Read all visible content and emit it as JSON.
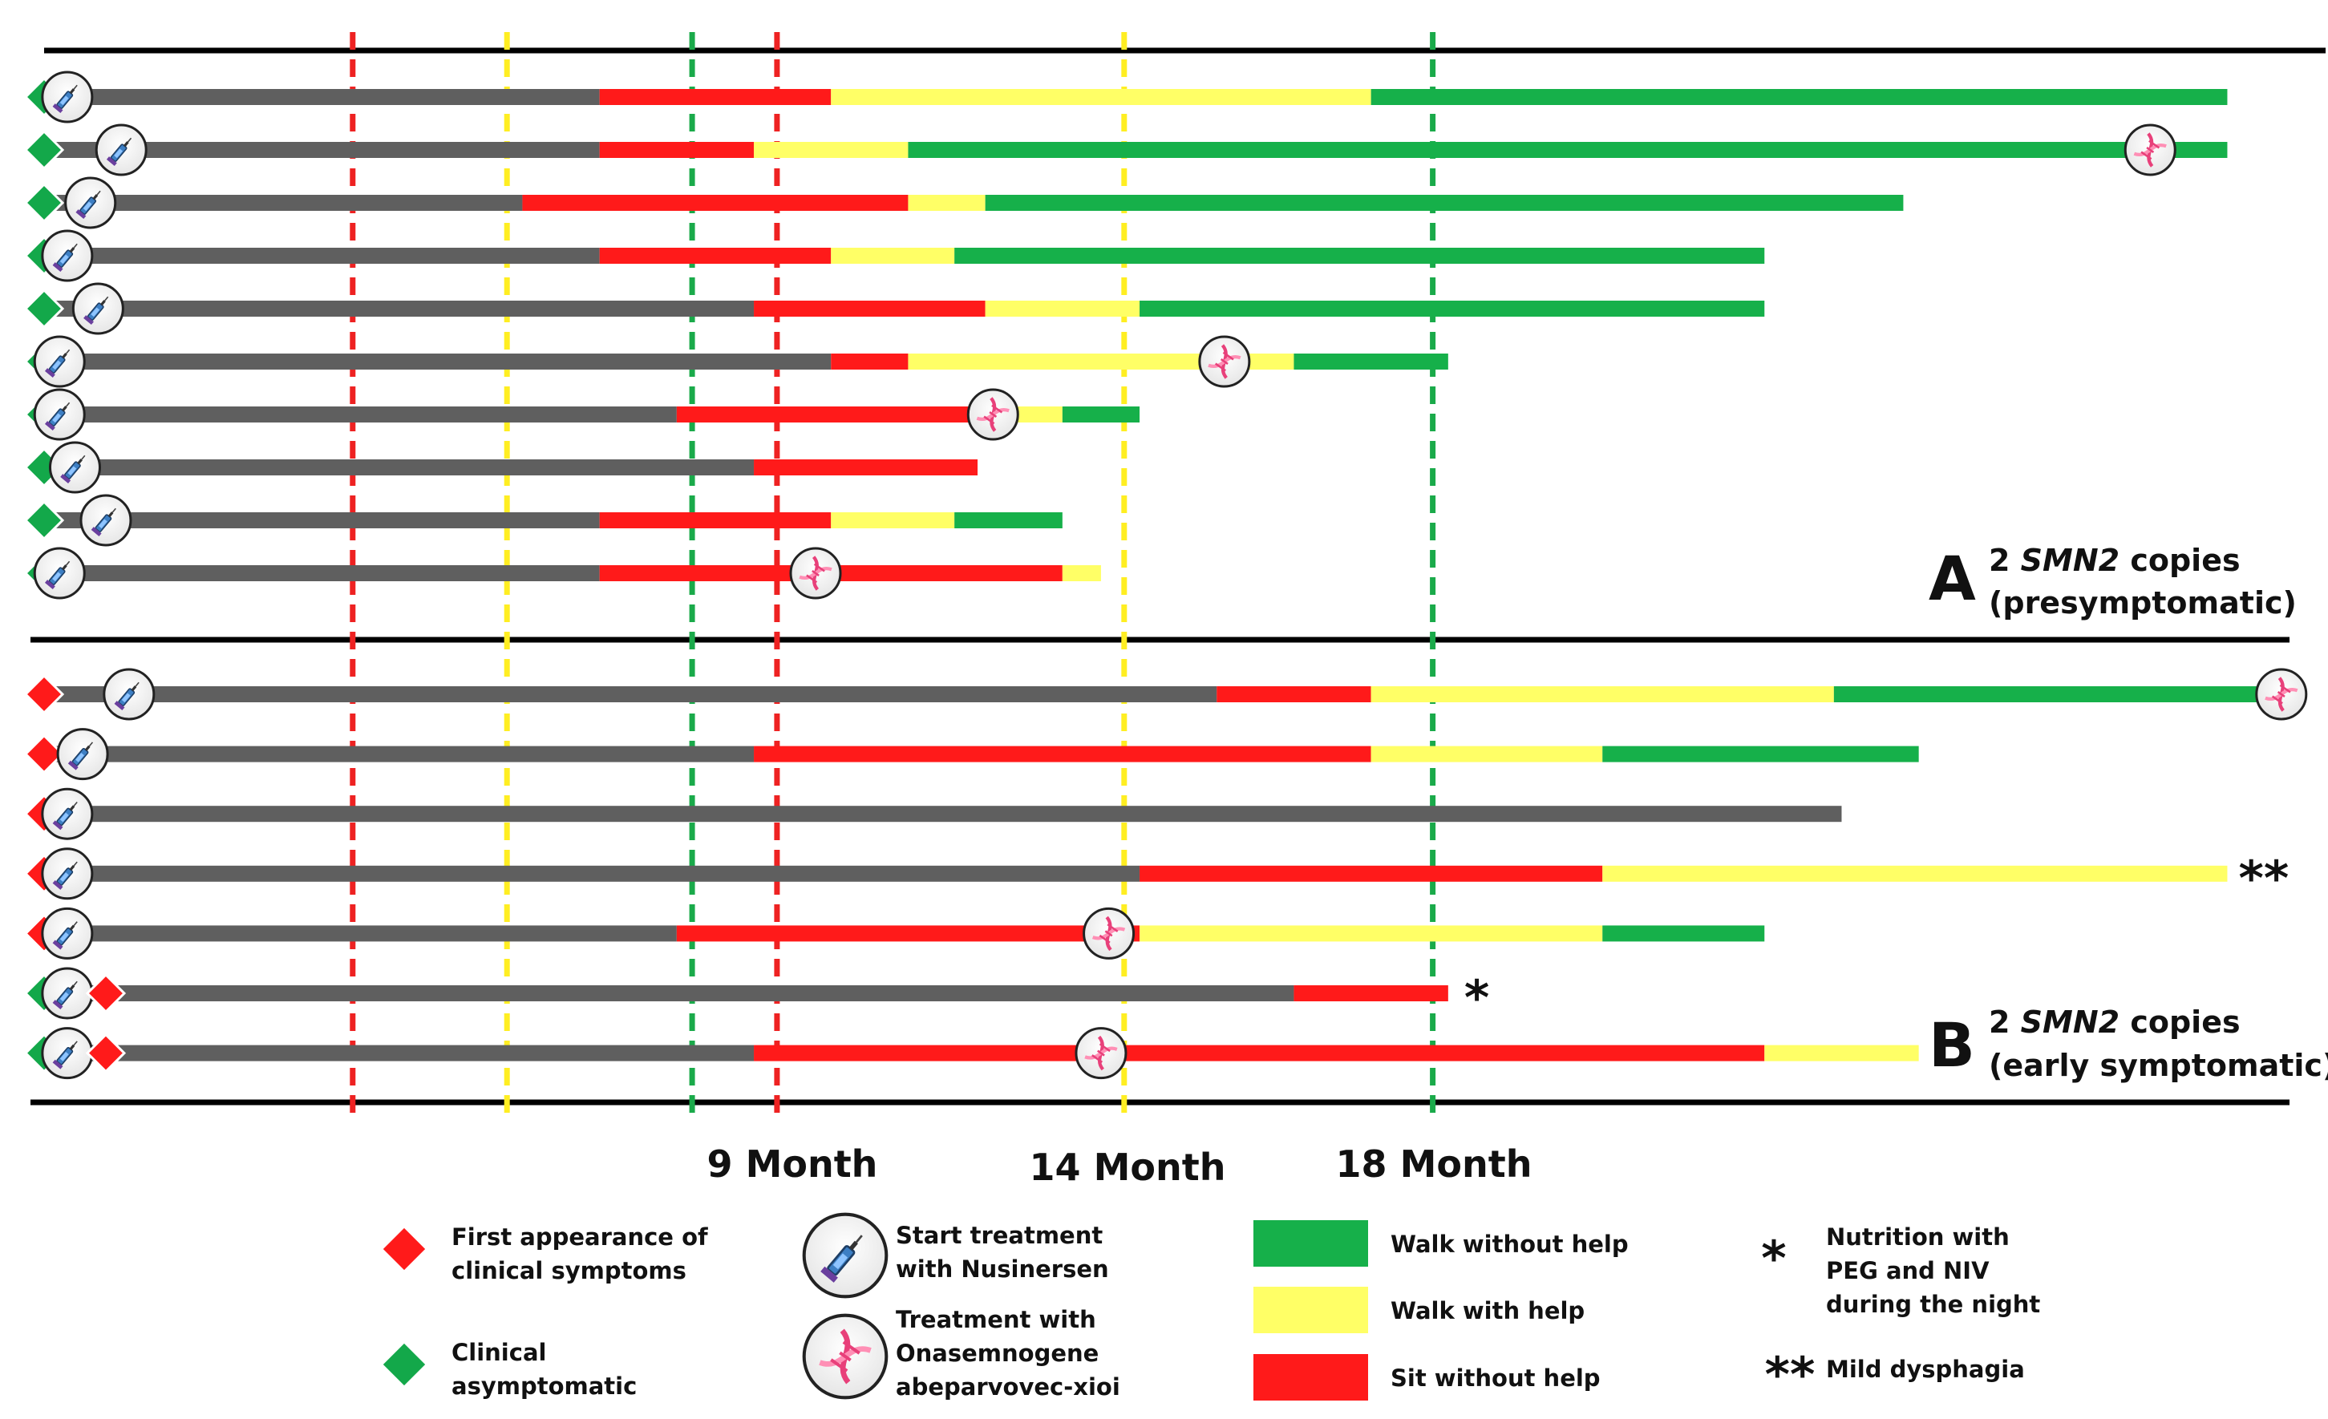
{
  "chart_data": {
    "type": "timeline",
    "x_unit": "month",
    "x_range": [
      0,
      27
    ],
    "month_labels": [
      {
        "month": 9,
        "text": "9 Month"
      },
      {
        "month": 14,
        "text": "14 Month"
      },
      {
        "month": 18,
        "text": "18 Month"
      }
    ],
    "reference_lines": [
      {
        "month": 4,
        "color": "red"
      },
      {
        "month": 6,
        "color": "yellow"
      },
      {
        "month": 8.4,
        "color": "green"
      },
      {
        "month": 9.5,
        "color": "red"
      },
      {
        "month": 14,
        "color": "yellow"
      },
      {
        "month": 18,
        "color": "green"
      }
    ],
    "colors": {
      "grey": "#5f5f5f",
      "sit": "#ff1a1a",
      "walk_help": "#ffff66",
      "walk": "#16b04a",
      "diamond_asym": "#13a84a",
      "diamond_sym": "#ff1a1a",
      "refline_red": "#ee2222",
      "refline_yellow": "#ffee22",
      "refline_green": "#1aaa4a"
    },
    "panels": [
      {
        "letter": "A",
        "line1_pre": "2 ",
        "line1_em": "SMN2",
        "line1_post": " copies",
        "line2": "(presymptomatic)",
        "patients": [
          {
            "diamond": "asymptomatic",
            "nusinersen": 0.3,
            "segments": [
              {
                "from": 0,
                "to": 7.2,
                "state": "grey"
              },
              {
                "from": 7.2,
                "to": 10.2,
                "state": "sit"
              },
              {
                "from": 10.2,
                "to": 17.2,
                "state": "walk_help"
              },
              {
                "from": 17.2,
                "to": 28.3,
                "state": "walk"
              }
            ]
          },
          {
            "diamond": "asymptomatic",
            "nusinersen": 1.0,
            "onasemnogene": 27.3,
            "segments": [
              {
                "from": 0,
                "to": 7.2,
                "state": "grey"
              },
              {
                "from": 7.2,
                "to": 9.2,
                "state": "sit"
              },
              {
                "from": 9.2,
                "to": 11.2,
                "state": "walk_help"
              },
              {
                "from": 11.2,
                "to": 28.3,
                "state": "walk"
              }
            ]
          },
          {
            "diamond": "asymptomatic",
            "nusinersen": 0.6,
            "segments": [
              {
                "from": 0,
                "to": 6.2,
                "state": "grey"
              },
              {
                "from": 6.2,
                "to": 11.2,
                "state": "sit"
              },
              {
                "from": 11.2,
                "to": 12.2,
                "state": "walk_help"
              },
              {
                "from": 12.2,
                "to": 24.1,
                "state": "walk"
              }
            ]
          },
          {
            "diamond": "asymptomatic",
            "nusinersen": 0.3,
            "segments": [
              {
                "from": 0,
                "to": 7.2,
                "state": "grey"
              },
              {
                "from": 7.2,
                "to": 10.2,
                "state": "sit"
              },
              {
                "from": 10.2,
                "to": 11.8,
                "state": "walk_help"
              },
              {
                "from": 11.8,
                "to": 22.3,
                "state": "walk"
              }
            ]
          },
          {
            "diamond": "asymptomatic",
            "nusinersen": 0.7,
            "segments": [
              {
                "from": 0,
                "to": 9.2,
                "state": "grey"
              },
              {
                "from": 9.2,
                "to": 12.2,
                "state": "sit"
              },
              {
                "from": 12.2,
                "to": 14.2,
                "state": "walk_help"
              },
              {
                "from": 14.2,
                "to": 22.3,
                "state": "walk"
              }
            ]
          },
          {
            "diamond": "asymptomatic",
            "nusinersen": 0.2,
            "onasemnogene": 15.3,
            "segments": [
              {
                "from": 0,
                "to": 10.2,
                "state": "grey"
              },
              {
                "from": 10.2,
                "to": 11.2,
                "state": "sit"
              },
              {
                "from": 11.2,
                "to": 16.2,
                "state": "walk_help"
              },
              {
                "from": 16.2,
                "to": 18.2,
                "state": "walk"
              }
            ]
          },
          {
            "diamond": "asymptomatic",
            "nusinersen": 0.2,
            "onasemnogene": 12.3,
            "segments": [
              {
                "from": 0,
                "to": 8.2,
                "state": "grey"
              },
              {
                "from": 8.2,
                "to": 12.2,
                "state": "sit"
              },
              {
                "from": 12.2,
                "to": 13.2,
                "state": "walk_help"
              },
              {
                "from": 13.2,
                "to": 14.2,
                "state": "walk"
              }
            ]
          },
          {
            "diamond": "asymptomatic",
            "nusinersen": 0.4,
            "segments": [
              {
                "from": 0,
                "to": 9.2,
                "state": "grey"
              },
              {
                "from": 9.2,
                "to": 12.1,
                "state": "sit"
              }
            ]
          },
          {
            "diamond": "asymptomatic",
            "nusinersen": 0.8,
            "segments": [
              {
                "from": 0,
                "to": 7.2,
                "state": "grey"
              },
              {
                "from": 7.2,
                "to": 10.2,
                "state": "sit"
              },
              {
                "from": 10.2,
                "to": 11.8,
                "state": "walk_help"
              },
              {
                "from": 11.8,
                "to": 13.2,
                "state": "walk"
              }
            ]
          },
          {
            "diamond": "asymptomatic",
            "nusinersen": 0.2,
            "onasemnogene": 10.0,
            "segments": [
              {
                "from": 0,
                "to": 7.2,
                "state": "grey"
              },
              {
                "from": 7.2,
                "to": 13.2,
                "state": "sit"
              },
              {
                "from": 13.2,
                "to": 13.7,
                "state": "walk_help"
              }
            ]
          }
        ]
      },
      {
        "letter": "B",
        "line1_pre": "2 ",
        "line1_em": "SMN2",
        "line1_post": " copies",
        "line2": "(early symptomatic)",
        "patients": [
          {
            "diamond": "symptomatic",
            "nusinersen": 1.1,
            "onasemnogene": 29.0,
            "segments": [
              {
                "from": 0,
                "to": 15.2,
                "state": "grey"
              },
              {
                "from": 15.2,
                "to": 17.2,
                "state": "sit"
              },
              {
                "from": 17.2,
                "to": 23.2,
                "state": "walk_help"
              },
              {
                "from": 23.2,
                "to": 28.7,
                "state": "walk"
              }
            ]
          },
          {
            "diamond": "symptomatic",
            "nusinersen": 0.5,
            "segments": [
              {
                "from": 0,
                "to": 9.2,
                "state": "grey"
              },
              {
                "from": 9.2,
                "to": 17.2,
                "state": "sit"
              },
              {
                "from": 17.2,
                "to": 20.2,
                "state": "walk_help"
              },
              {
                "from": 20.2,
                "to": 24.3,
                "state": "walk"
              }
            ]
          },
          {
            "diamond": "symptomatic",
            "nusinersen": 0.3,
            "segments": [
              {
                "from": 0,
                "to": 23.3,
                "state": "grey"
              }
            ]
          },
          {
            "diamond": "symptomatic",
            "nusinersen": 0.3,
            "note": "**",
            "segments": [
              {
                "from": 0,
                "to": 14.2,
                "state": "grey"
              },
              {
                "from": 14.2,
                "to": 20.2,
                "state": "sit"
              },
              {
                "from": 20.2,
                "to": 28.3,
                "state": "walk_help"
              }
            ]
          },
          {
            "diamond": "symptomatic",
            "nusinersen": 0.3,
            "onasemnogene": 13.8,
            "segments": [
              {
                "from": 0,
                "to": 8.2,
                "state": "grey"
              },
              {
                "from": 8.2,
                "to": 14.2,
                "state": "sit"
              },
              {
                "from": 14.2,
                "to": 20.2,
                "state": "walk_help"
              },
              {
                "from": 20.2,
                "to": 22.3,
                "state": "walk"
              }
            ]
          },
          {
            "diamond": "asymptomatic",
            "nusinersen": 0.3,
            "late_symptom": 0.8,
            "note": "*",
            "segments": [
              {
                "from": 0,
                "to": 16.2,
                "state": "grey"
              },
              {
                "from": 16.2,
                "to": 18.2,
                "state": "sit"
              }
            ]
          },
          {
            "diamond": "asymptomatic",
            "nusinersen": 0.3,
            "late_symptom": 0.8,
            "onasemnogene": 13.7,
            "segments": [
              {
                "from": 0,
                "to": 9.2,
                "state": "grey"
              },
              {
                "from": 9.2,
                "to": 22.3,
                "state": "sit"
              },
              {
                "from": 22.3,
                "to": 24.3,
                "state": "walk_help"
              }
            ]
          }
        ]
      }
    ],
    "legend": {
      "symptom_diamond_line1": "First appearance of",
      "symptom_diamond_line2": "clinical symptoms",
      "asym_diamond_line1": "Clinical",
      "asym_diamond_line2": "asymptomatic",
      "nusinersen_line1": "Start treatment",
      "nusinersen_line2": "with Nusinersen",
      "onasemnogene_line1": "Treatment with",
      "onasemnogene_line2": "Onasemnogene",
      "onasemnogene_line3": "abeparvovec-xioi",
      "walk": "Walk without help",
      "walk_help": "Walk with help",
      "sit": "Sit without help",
      "star1": "*",
      "star1_line1": "Nutrition with",
      "star1_line2": "PEG and NIV",
      "star1_line3": "during the night",
      "star2": "**",
      "star2_text": "Mild dysphagia"
    }
  }
}
